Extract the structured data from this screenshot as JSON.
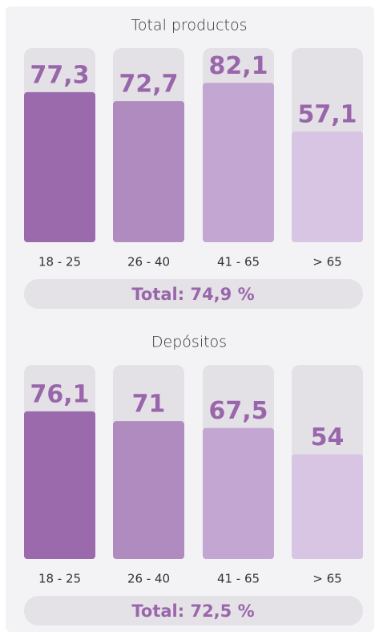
{
  "chart_data": [
    {
      "type": "bar",
      "title": "Total productos",
      "categories": [
        "18 - 25",
        "26 - 40",
        "41 - 65",
        "> 65"
      ],
      "values": [
        77.3,
        72.7,
        82.1,
        57.1
      ],
      "value_labels": [
        "77,3",
        "72,7",
        "82,1",
        "57,1"
      ],
      "colors": [
        "#9b6aac",
        "#b08bbf",
        "#c3a6d1",
        "#d7c5e3"
      ],
      "ylim": [
        0,
        100
      ],
      "annotation": "Total: 74,9 %"
    },
    {
      "type": "bar",
      "title": "Depósitos",
      "categories": [
        "18 - 25",
        "26 - 40",
        "41 - 65",
        "> 65"
      ],
      "values": [
        76.1,
        71,
        67.5,
        54
      ],
      "value_labels": [
        "76,1",
        "71",
        "67,5",
        "54"
      ],
      "colors": [
        "#9b6aac",
        "#b08bbf",
        "#c3a6d1",
        "#d7c5e3"
      ],
      "ylim": [
        0,
        100
      ],
      "annotation": "Total: 72,5 %"
    }
  ]
}
